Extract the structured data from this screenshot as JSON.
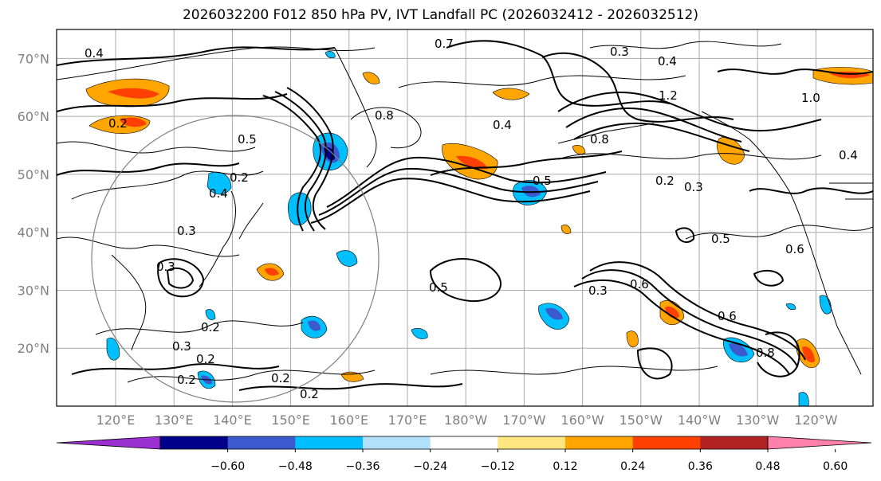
{
  "title": "2026032200 F012 850 hPa PV, IVT Landfall PC (2026032412 - 2026032512)",
  "map": {
    "lat_labels": [
      "70°N",
      "60°N",
      "50°N",
      "40°N",
      "30°N",
      "20°N"
    ],
    "lat_values": [
      70,
      60,
      50,
      40,
      30,
      20
    ],
    "lon_labels": [
      "120°E",
      "130°E",
      "140°E",
      "150°E",
      "160°E",
      "170°E",
      "180°W",
      "170°W",
      "160°W",
      "150°W",
      "140°W",
      "130°W",
      "120°W"
    ],
    "contour_labels": [
      "0.4",
      "0.7",
      "0.3",
      "0.4",
      "1.2",
      "1.0",
      "0.2",
      "0.5",
      "0.2",
      "0.4",
      "0.3",
      "0.5",
      "0.3",
      "0.2",
      "0.3",
      "0.5",
      "0.5",
      "0.6",
      "0.3",
      "0.6",
      "0.8",
      "0.2",
      "0.2",
      "0.2",
      "0.2",
      "0.3",
      "0.6",
      "0.2",
      "0.4",
      "0.4",
      "0.8",
      "0.8"
    ]
  },
  "colorbar": {
    "ticks": [
      "−0.60",
      "−0.48",
      "−0.36",
      "−0.24",
      "−0.12",
      "0.12",
      "0.24",
      "0.36",
      "0.48",
      "0.60"
    ],
    "colors": [
      "#9b30d0",
      "#00008b",
      "#3a5acd",
      "#00bfff",
      "#b0e0fa",
      "#ffffff",
      "#ffe680",
      "#ffa500",
      "#ff4000",
      "#b22222",
      "#ff80aa"
    ]
  }
}
